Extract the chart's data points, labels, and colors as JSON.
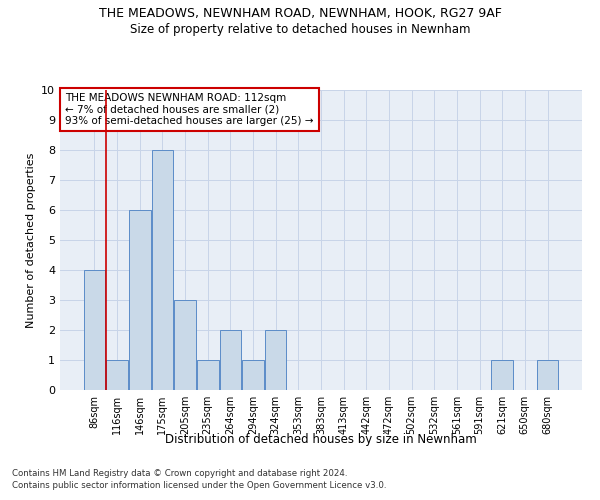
{
  "title": "THE MEADOWS, NEWNHAM ROAD, NEWNHAM, HOOK, RG27 9AF",
  "subtitle": "Size of property relative to detached houses in Newnham",
  "xlabel": "Distribution of detached houses by size in Newnham",
  "ylabel": "Number of detached properties",
  "bar_labels": [
    "86sqm",
    "116sqm",
    "146sqm",
    "175sqm",
    "205sqm",
    "235sqm",
    "264sqm",
    "294sqm",
    "324sqm",
    "353sqm",
    "383sqm",
    "413sqm",
    "442sqm",
    "472sqm",
    "502sqm",
    "532sqm",
    "561sqm",
    "591sqm",
    "621sqm",
    "650sqm",
    "680sqm"
  ],
  "bar_values": [
    4,
    1,
    6,
    8,
    3,
    1,
    2,
    1,
    2,
    0,
    0,
    0,
    0,
    0,
    0,
    0,
    0,
    0,
    1,
    0,
    1
  ],
  "bar_color": "#c9d9e8",
  "bar_edge_color": "#5b8cc8",
  "marker_line_color": "#cc0000",
  "ylim": [
    0,
    10
  ],
  "yticks": [
    0,
    1,
    2,
    3,
    4,
    5,
    6,
    7,
    8,
    9,
    10
  ],
  "annotation_text": "THE MEADOWS NEWNHAM ROAD: 112sqm\n← 7% of detached houses are smaller (2)\n93% of semi-detached houses are larger (25) →",
  "annotation_box_color": "#ffffff",
  "annotation_box_edge": "#cc0000",
  "footer1": "Contains HM Land Registry data © Crown copyright and database right 2024.",
  "footer2": "Contains public sector information licensed under the Open Government Licence v3.0.",
  "grid_color": "#c8d4e8",
  "bg_color": "#e8eef6"
}
